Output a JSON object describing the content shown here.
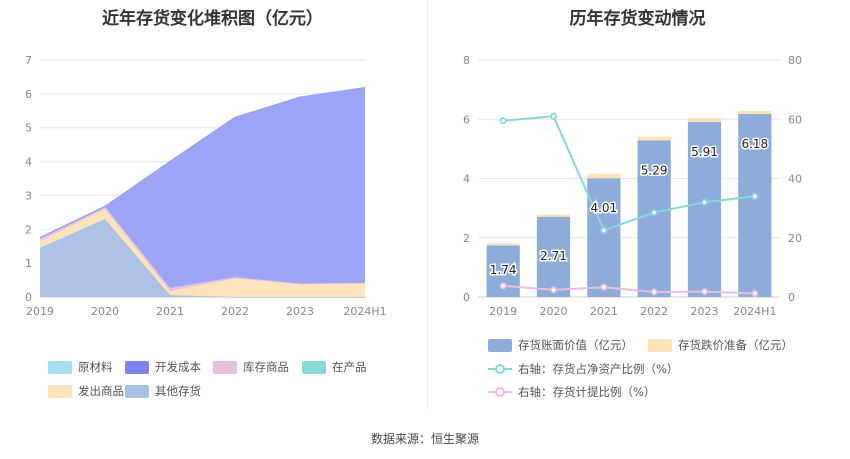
{
  "left_chart": {
    "title": "近年存货变化堆积图（亿元）",
    "chart_data": {
      "type": "area",
      "stacked": true,
      "categories": [
        "2019",
        "2020",
        "2021",
        "2022",
        "2023",
        "2024H1"
      ],
      "y_ticks": [
        "0",
        "1",
        "2",
        "3",
        "4",
        "5",
        "6",
        "7"
      ],
      "ylim": [
        0,
        7
      ],
      "series": [
        {
          "name": "其他存货",
          "color": "#a9bfe3",
          "values": [
            1.45,
            2.3,
            0.05,
            0.0,
            0.0,
            0.0
          ]
        },
        {
          "name": "发出商品",
          "color": "#fde3b8",
          "values": [
            0.2,
            0.3,
            0.12,
            0.55,
            0.38,
            0.42
          ]
        },
        {
          "name": "在产品",
          "color": "#88d7d9",
          "values": [
            0.0,
            0.0,
            0.0,
            0.0,
            0.0,
            0.0
          ]
        },
        {
          "name": "库存商品",
          "color": "#e9bfe0",
          "values": [
            0.1,
            0.07,
            0.1,
            0.04,
            0.02,
            0.0
          ]
        },
        {
          "name": "开发成本",
          "color": "#9aa0f5",
          "values": [
            0.0,
            0.0,
            3.73,
            4.71,
            5.5,
            5.76
          ]
        },
        {
          "name": "原材料",
          "color": "#a9ddf6",
          "values": [
            0.0,
            0.0,
            0.0,
            0.0,
            0.0,
            0.0
          ]
        }
      ],
      "legend": [
        {
          "name": "原材料",
          "color": "#a9ddf6"
        },
        {
          "name": "开发成本",
          "color": "#7f83f0"
        },
        {
          "name": "库存商品",
          "color": "#e9bfe0"
        },
        {
          "name": "在产品",
          "color": "#88d7d9"
        },
        {
          "name": "发出商品",
          "color": "#fde3b8"
        },
        {
          "name": "其他存货",
          "color": "#a9bfe3"
        }
      ]
    }
  },
  "right_chart": {
    "title": "历年存货变动情况",
    "chart_data": {
      "type": "bar",
      "categories": [
        "2019",
        "2020",
        "2021",
        "2022",
        "2023",
        "2024H1"
      ],
      "y_left_ticks": [
        "0",
        "2",
        "4",
        "6",
        "8"
      ],
      "y_right_ticks": [
        "0",
        "20",
        "40",
        "60",
        "80"
      ],
      "ylim_left": [
        0,
        8
      ],
      "ylim_right": [
        0,
        80
      ],
      "series": [
        {
          "name": "存货账面价值（亿元）",
          "type": "bar",
          "color": "#8eacd9",
          "values": [
            1.74,
            2.71,
            4.01,
            5.29,
            5.91,
            6.18
          ],
          "labels": [
            "1.74",
            "2.71",
            "4.01",
            "5.29",
            "5.91",
            "6.18"
          ]
        },
        {
          "name": "存货跌价准备（亿元）",
          "type": "bar",
          "color": "#fde3b8",
          "values": [
            0.07,
            0.07,
            0.15,
            0.12,
            0.13,
            0.1
          ]
        },
        {
          "name": "右轴：存货占净资产比例（%）",
          "type": "line",
          "axis": "right",
          "color": "#88d7d9",
          "values": [
            59.5,
            61,
            22.5,
            28.5,
            32,
            34
          ]
        },
        {
          "name": "右轴：存货计提比例（%）",
          "type": "line",
          "axis": "right",
          "color": "#e9bfe0",
          "values": [
            3.8,
            2.4,
            3.3,
            1.7,
            1.8,
            1.2
          ]
        }
      ]
    }
  },
  "footer": {
    "source": "数据来源：恒生聚源"
  }
}
